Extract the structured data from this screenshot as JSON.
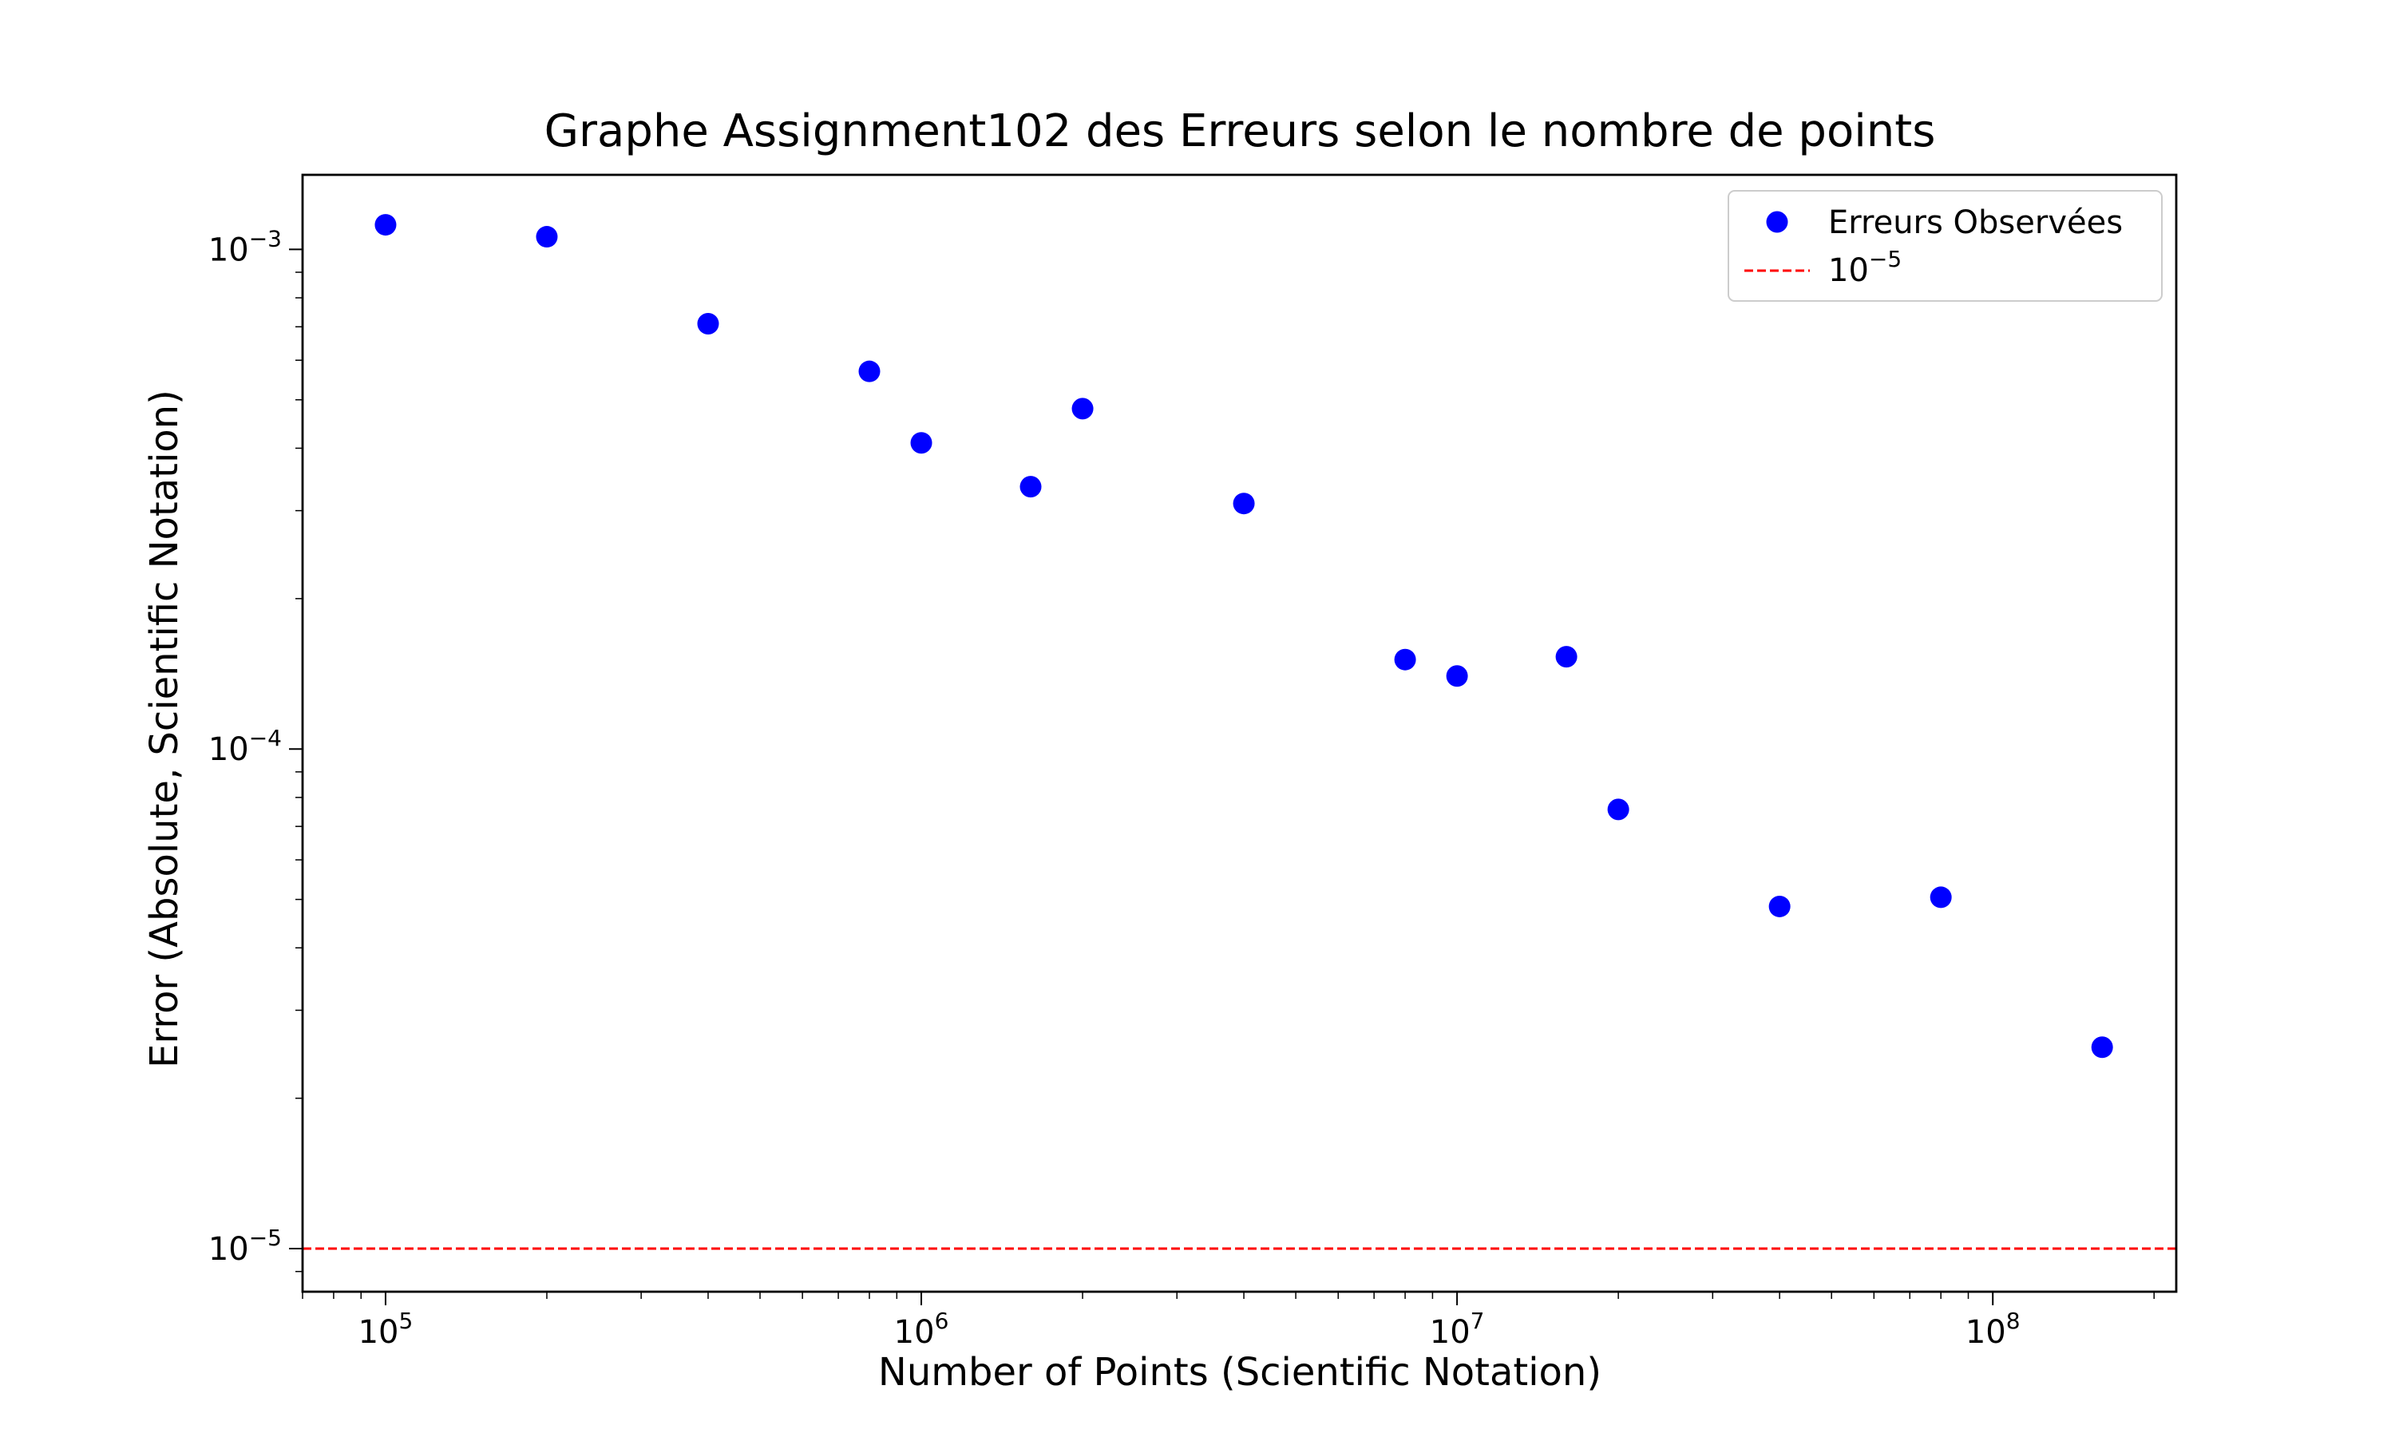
{
  "chart_data": {
    "type": "scatter",
    "title": "Graphe Assignment102 des Erreurs selon le nombre de points",
    "xlabel": "Number of Points (Scientific Notation)",
    "ylabel": "Error (Absolute, Scientific Notation)",
    "xscale": "log",
    "yscale": "log",
    "xlim": [
      70000,
      220000000
    ],
    "ylim": [
      8.2e-06,
      0.00141
    ],
    "grid": false,
    "legend_position": "top-right",
    "x_ticks": [
      {
        "value": 100000,
        "base": "10",
        "exp": "5"
      },
      {
        "value": 1000000,
        "base": "10",
        "exp": "6"
      },
      {
        "value": 10000000,
        "base": "10",
        "exp": "7"
      },
      {
        "value": 100000000,
        "base": "10",
        "exp": "8"
      }
    ],
    "y_ticks": [
      {
        "value": 0.001,
        "base": "10",
        "exp": "−3"
      },
      {
        "value": 0.0001,
        "base": "10",
        "exp": "−4"
      },
      {
        "value": 1e-05,
        "base": "10",
        "exp": "−5"
      }
    ],
    "series": [
      {
        "name": "Erreurs Observées",
        "color": "#0000ff",
        "marker": "circle",
        "x": [
          100000,
          200000,
          400000,
          800000,
          1000000,
          1600000,
          2000000,
          4000000,
          8000000,
          10000000,
          16000000,
          20000000,
          40000000,
          80000000,
          160000000
        ],
        "y": [
          0.00112,
          0.00106,
          0.00071,
          0.00057,
          0.00041,
          0.000335,
          0.00048,
          0.00031,
          0.000151,
          0.00014,
          0.000153,
          7.57e-05,
          4.84e-05,
          5.05e-05,
          2.53e-05
        ]
      }
    ],
    "reference_lines": [
      {
        "orientation": "horizontal",
        "value": 1e-05,
        "color": "#ff0000",
        "style": "dashed",
        "label_base": "10",
        "label_exp": "−5"
      }
    ]
  }
}
